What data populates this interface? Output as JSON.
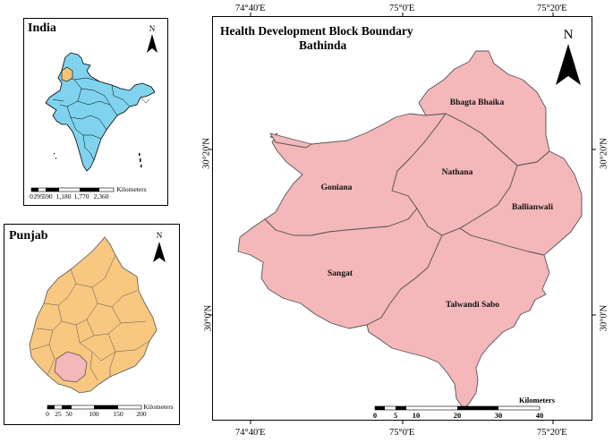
{
  "india_inset": {
    "title": "India",
    "north": "N",
    "scale_ticks": [
      "0",
      "295",
      "590",
      "1,180",
      "1,770",
      "2,360"
    ],
    "scale_unit": "Kilometers",
    "colors": {
      "fill": "#7fd3ee",
      "highlight": "#f5c27a"
    }
  },
  "punjab_inset": {
    "title": "Punjab",
    "north": "N",
    "scale_ticks": [
      "0",
      "25",
      "50",
      "100",
      "150",
      "200"
    ],
    "scale_unit": "Kilometers",
    "colors": {
      "fill": "#f8c780",
      "highlight": "#f4b7ba"
    }
  },
  "main_map": {
    "title_line1": "Health Development Block Boundary",
    "title_line2": "Bathinda",
    "north": "N",
    "top_coords": [
      "74°40'E",
      "75°0'E",
      "75°20'E"
    ],
    "bottom_coords": [
      "74°40'E",
      "75°0'E",
      "75°20'E"
    ],
    "left_coords": [
      "30°20'N",
      "30°0'N"
    ],
    "right_coords": [
      "30°20'N",
      "30°0'N"
    ],
    "blocks": [
      "Bhagta Bhaika",
      "Goniana",
      "Nathana",
      "Ballianwali",
      "Sangat",
      "Talwandi Sabo"
    ],
    "scale_ticks": [
      "0",
      "5",
      "10",
      "20",
      "30",
      "40"
    ],
    "scale_unit": "Kilometers",
    "colors": {
      "fill": "#f4b7ba",
      "stroke": "#555555"
    }
  }
}
